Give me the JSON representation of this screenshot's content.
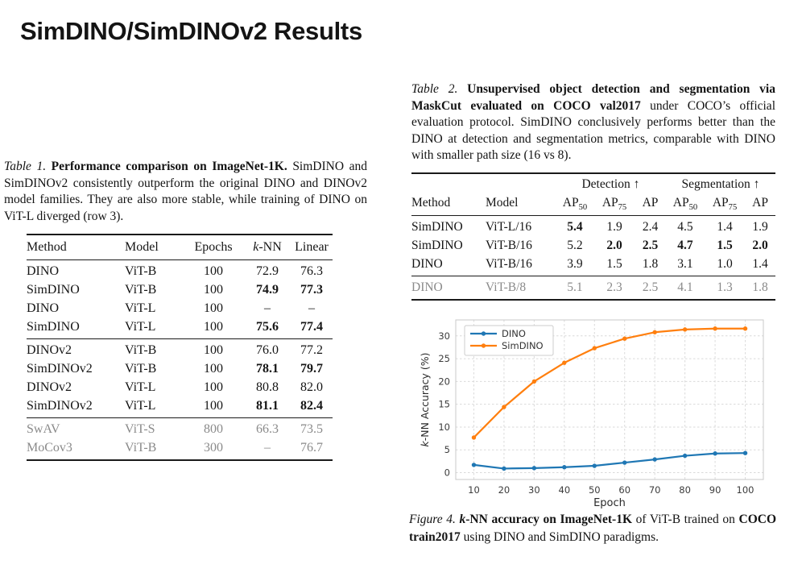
{
  "title": "SimDINO/SimDINOv2 Results",
  "colors": {
    "accent_blue": "#1f77b4",
    "accent_orange": "#ff7f0e",
    "muted_row_text": "#8a8a8a",
    "rule": "#1a1a1a"
  },
  "table1": {
    "caption": [
      {
        "t": "Table 1. ",
        "s": "i"
      },
      {
        "t": "Performance comparison on ImageNet-1K. ",
        "s": "b"
      },
      {
        "t": "SimDINO and SimDINOv2 consistently outperform the original DINO and DINOv2 model families. They are also more stable, while training of DINO on ViT-L diverged (row 3).",
        "s": "n"
      }
    ],
    "columns": [
      [
        {
          "t": "Method",
          "s": "n"
        }
      ],
      [
        {
          "t": "Model",
          "s": "n"
        }
      ],
      [
        {
          "t": "Epochs",
          "s": "n"
        }
      ],
      [
        {
          "t": "k",
          "s": "i"
        },
        {
          "t": "-NN",
          "s": "n"
        }
      ],
      [
        {
          "t": "Linear",
          "s": "n"
        }
      ]
    ],
    "sections": [
      {
        "gray": false,
        "rows": [
          {
            "cells": [
              "DINO",
              "ViT-B",
              "100",
              "72.9",
              "76.3"
            ],
            "bold": []
          },
          {
            "cells": [
              "SimDINO",
              "ViT-B",
              "100",
              "74.9",
              "77.3"
            ],
            "bold": [
              3,
              4
            ]
          },
          {
            "cells": [
              "DINO",
              "ViT-L",
              "100",
              "–",
              "–"
            ],
            "bold": []
          },
          {
            "cells": [
              "SimDINO",
              "ViT-L",
              "100",
              "75.6",
              "77.4"
            ],
            "bold": [
              3,
              4
            ]
          }
        ]
      },
      {
        "gray": false,
        "rows": [
          {
            "cells": [
              "DINOv2",
              "ViT-B",
              "100",
              "76.0",
              "77.2"
            ],
            "bold": []
          },
          {
            "cells": [
              "SimDINOv2",
              "ViT-B",
              "100",
              "78.1",
              "79.7"
            ],
            "bold": [
              3,
              4
            ]
          },
          {
            "cells": [
              "DINOv2",
              "ViT-L",
              "100",
              "80.8",
              "82.0"
            ],
            "bold": []
          },
          {
            "cells": [
              "SimDINOv2",
              "ViT-L",
              "100",
              "81.1",
              "82.4"
            ],
            "bold": [
              3,
              4
            ]
          }
        ]
      },
      {
        "gray": true,
        "rows": [
          {
            "cells": [
              "SwAV",
              "ViT-S",
              "800",
              "66.3",
              "73.5"
            ],
            "bold": []
          },
          {
            "cells": [
              "MoCov3",
              "ViT-B",
              "300",
              "–",
              "76.7"
            ],
            "bold": []
          }
        ]
      }
    ]
  },
  "table2": {
    "caption": [
      {
        "t": "Table 2. ",
        "s": "i"
      },
      {
        "t": "Unsupervised object detection and segmentation via MaskCut evaluated on COCO val2017 ",
        "s": "b"
      },
      {
        "t": "under COCO’s official evaluation protocol. SimDINO conclusively performs better than the DINO at detection and segmentation metrics, comparable with DINO with smaller path size (16 vs 8).",
        "s": "n"
      }
    ],
    "group_headers": [
      {
        "label": "",
        "span": 2
      },
      {
        "label": "Detection ↑",
        "span": 3
      },
      {
        "label": "Segmentation ↑",
        "span": 3
      }
    ],
    "columns": [
      [
        {
          "t": "Method",
          "s": "n"
        }
      ],
      [
        {
          "t": "Model",
          "s": "n"
        }
      ],
      [
        {
          "t": "AP",
          "s": "n"
        },
        {
          "t": "50",
          "s": "sub"
        }
      ],
      [
        {
          "t": "AP",
          "s": "n"
        },
        {
          "t": "75",
          "s": "sub"
        }
      ],
      [
        {
          "t": "AP",
          "s": "n"
        }
      ],
      [
        {
          "t": "AP",
          "s": "n"
        },
        {
          "t": "50",
          "s": "sub"
        }
      ],
      [
        {
          "t": "AP",
          "s": "n"
        },
        {
          "t": "75",
          "s": "sub"
        }
      ],
      [
        {
          "t": "AP",
          "s": "n"
        }
      ]
    ],
    "sections": [
      {
        "gray": false,
        "rows": [
          {
            "cells": [
              "SimDINO",
              "ViT-L/16",
              "5.4",
              "1.9",
              "2.4",
              "4.5",
              "1.4",
              "1.9"
            ],
            "bold": [
              2
            ]
          },
          {
            "cells": [
              "SimDINO",
              "ViT-B/16",
              "5.2",
              "2.0",
              "2.5",
              "4.7",
              "1.5",
              "2.0"
            ],
            "bold": [
              3,
              4,
              5,
              6,
              7
            ]
          },
          {
            "cells": [
              "DINO",
              "ViT-B/16",
              "3.9",
              "1.5",
              "1.8",
              "3.1",
              "1.0",
              "1.4"
            ],
            "bold": []
          }
        ]
      },
      {
        "gray": true,
        "rows": [
          {
            "cells": [
              "DINO",
              "ViT-B/8",
              "5.1",
              "2.3",
              "2.5",
              "4.1",
              "1.3",
              "1.8"
            ],
            "bold": []
          }
        ]
      }
    ]
  },
  "figure": {
    "caption": [
      {
        "t": "Figure 4. ",
        "s": "i"
      },
      {
        "t": "k",
        "s": "bi"
      },
      {
        "t": "-NN accuracy on ImageNet-1K ",
        "s": "b"
      },
      {
        "t": "of ViT-B trained on ",
        "s": "n"
      },
      {
        "t": "COCO train2017 ",
        "s": "b"
      },
      {
        "t": "using DINO and SimDINO paradigms.",
        "s": "n"
      }
    ]
  },
  "chart_data": {
    "type": "line",
    "title": "",
    "xlabel": "Epoch",
    "ylabel": "k-NN Accuracy (%)",
    "x": [
      10,
      20,
      30,
      40,
      50,
      60,
      70,
      80,
      90,
      100
    ],
    "series": [
      {
        "name": "DINO",
        "color": "#1f77b4",
        "values": [
          1.7,
          0.9,
          1.0,
          1.2,
          1.5,
          2.2,
          2.9,
          3.7,
          4.2,
          4.3
        ]
      },
      {
        "name": "SimDINO",
        "color": "#ff7f0e",
        "values": [
          7.7,
          14.4,
          20.0,
          24.1,
          27.3,
          29.4,
          30.8,
          31.4,
          31.6,
          31.6
        ]
      }
    ],
    "xticks": [
      10,
      20,
      30,
      40,
      50,
      60,
      70,
      80,
      90,
      100
    ],
    "yticks": [
      0,
      5,
      10,
      15,
      20,
      25,
      30
    ],
    "xlim": [
      4,
      106
    ],
    "ylim": [
      -1.5,
      33.5
    ],
    "grid": true,
    "legend_position": "upper left"
  }
}
